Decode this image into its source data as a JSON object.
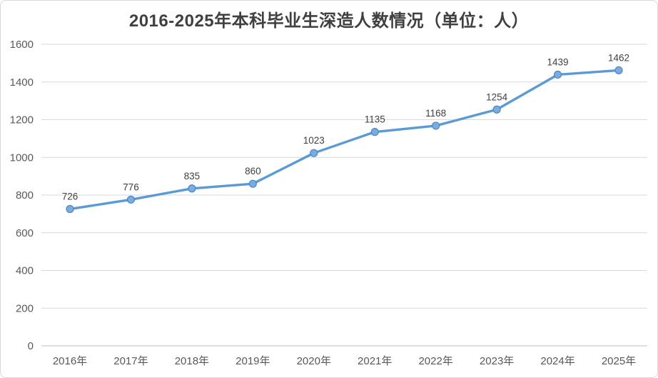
{
  "chart_data": {
    "type": "line",
    "title": "2016-2025年本科毕业生深造人数情况（单位：人）",
    "categories": [
      "2016年",
      "2017年",
      "2018年",
      "2019年",
      "2020年",
      "2021年",
      "2022年",
      "2023年",
      "2024年",
      "2025年"
    ],
    "values": [
      726,
      776,
      835,
      860,
      1023,
      1135,
      1168,
      1254,
      1439,
      1462
    ],
    "data_labels": [
      "726",
      "776",
      "835",
      "860",
      "1023",
      "1135",
      "1168",
      "1254",
      "1439",
      "1462"
    ],
    "xlabel": "",
    "ylabel": "",
    "ylim": [
      0,
      1600
    ],
    "yticks": [
      0,
      200,
      400,
      600,
      800,
      1000,
      1200,
      1400,
      1600
    ],
    "grid": true,
    "legend": false,
    "colors": {
      "line": "#5B9BD5",
      "marker_fill": "#7AACDF",
      "marker_stroke": "#4D87C7",
      "grid": "#D9D9D9",
      "axis": "#BFBFBF",
      "title_text": "#404040",
      "tick_text": "#595959",
      "label_text": "#404040",
      "background": "#FFFFFF",
      "border": "#D9D9D9"
    }
  }
}
